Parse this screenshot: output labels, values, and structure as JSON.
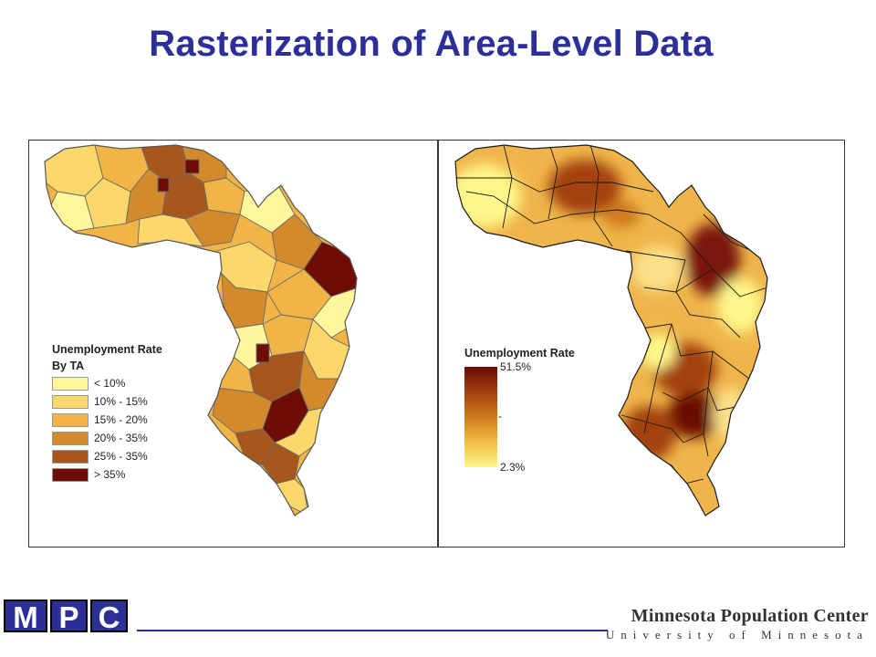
{
  "slide": {
    "title": "Rasterization of Area-Level Data"
  },
  "left_panel": {
    "legend_title_line1": "Unemployment Rate",
    "legend_title_line2": "By TA",
    "classes": [
      {
        "label": "< 10%",
        "color": "#fff799"
      },
      {
        "label": "10% - 15%",
        "color": "#fcd76a"
      },
      {
        "label": "15% - 20%",
        "color": "#f0b546"
      },
      {
        "label": "20% - 35%",
        "color": "#d38a2c"
      },
      {
        "label": "25% - 35%",
        "color": "#a8571c"
      },
      {
        "label": "> 35%",
        "color": "#6e0d06"
      }
    ]
  },
  "right_panel": {
    "legend_title": "Unemployment Rate",
    "ramp_max": "51.5%",
    "ramp_min": "2.3%",
    "ramp_colors": [
      "#6b0a05",
      "#a3420e",
      "#cf7a1e",
      "#efbd44",
      "#fff78a"
    ]
  },
  "footer": {
    "logo_letters": [
      "M",
      "P",
      "C"
    ],
    "org_name": "Minnesota Population Center",
    "org_sub": "University of Minnesota",
    "brand_color": "#2b2f97"
  }
}
